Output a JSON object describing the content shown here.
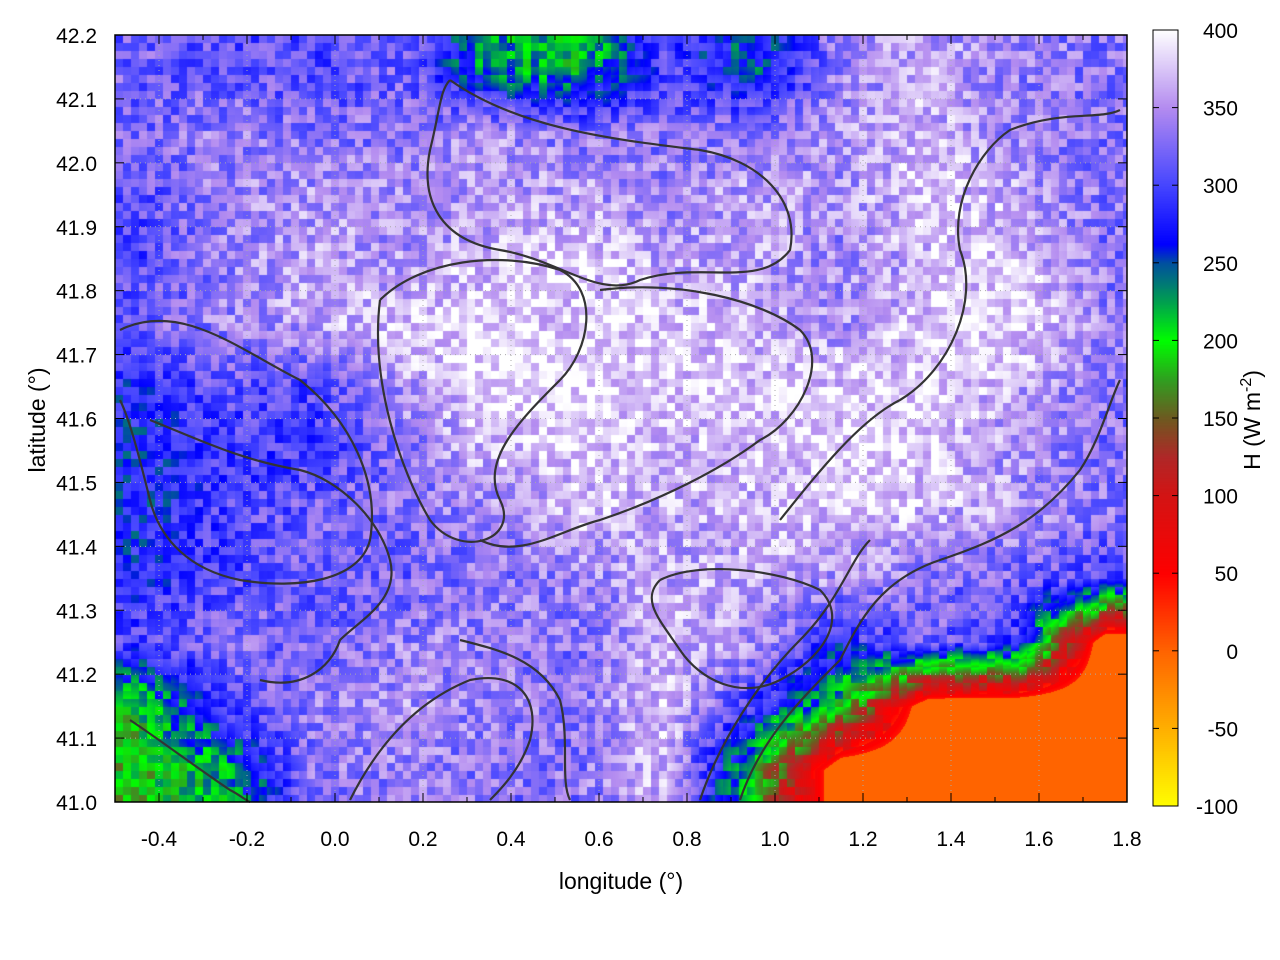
{
  "chart_data": {
    "type": "heatmap",
    "xlabel": "longitude (°)",
    "ylabel": "latitude (°)",
    "colorbar_label": "H (W m",
    "colorbar_label_sup": "-2",
    "colorbar_label_end": ")",
    "xlim": [
      -0.5,
      1.8
    ],
    "ylim": [
      41.0,
      42.2
    ],
    "clim": [
      -100,
      400
    ],
    "xticks": [
      "-0.4",
      "-0.2",
      "0.0",
      "0.2",
      "0.4",
      "0.6",
      "0.8",
      "1.0",
      "1.2",
      "1.4",
      "1.6",
      "1.8"
    ],
    "yticks": [
      "41.0",
      "41.1",
      "41.2",
      "41.3",
      "41.4",
      "41.5",
      "41.6",
      "41.7",
      "41.8",
      "41.9",
      "42.0",
      "42.1",
      "42.2"
    ],
    "cticks": [
      "-100",
      "-50",
      "0",
      "50",
      "100",
      "150",
      "200",
      "250",
      "300",
      "350",
      "400"
    ],
    "grid": true,
    "contours": true,
    "colormap": [
      {
        "v": -100,
        "c": "#ffff00"
      },
      {
        "v": -50,
        "c": "#ffb000"
      },
      {
        "v": 0,
        "c": "#ff6400"
      },
      {
        "v": 50,
        "c": "#ff0000"
      },
      {
        "v": 100,
        "c": "#d41414"
      },
      {
        "v": 125,
        "c": "#b02828"
      },
      {
        "v": 150,
        "c": "#6e5a20"
      },
      {
        "v": 175,
        "c": "#30a020"
      },
      {
        "v": 200,
        "c": "#00ff00"
      },
      {
        "v": 225,
        "c": "#00a050"
      },
      {
        "v": 250,
        "c": "#0050a0"
      },
      {
        "v": 262,
        "c": "#0000ff"
      },
      {
        "v": 300,
        "c": "#4646ff"
      },
      {
        "v": 350,
        "c": "#b48cf0"
      },
      {
        "v": 400,
        "c": "#ffffff"
      }
    ],
    "grid_lon": [
      -0.45,
      -0.25,
      -0.05,
      0.15,
      0.35,
      0.55,
      0.75,
      0.95,
      1.15,
      1.35,
      1.55,
      1.75
    ],
    "grid_lat": [
      42.15,
      42.05,
      41.95,
      41.85,
      41.75,
      41.65,
      41.55,
      41.45,
      41.35,
      41.25,
      41.15,
      41.05
    ],
    "values": [
      [
        320,
        310,
        300,
        320,
        230,
        210,
        300,
        250,
        340,
        360,
        340,
        330
      ],
      [
        320,
        340,
        330,
        330,
        350,
        330,
        330,
        330,
        350,
        370,
        340,
        330
      ],
      [
        310,
        340,
        350,
        350,
        350,
        360,
        340,
        360,
        350,
        380,
        360,
        330
      ],
      [
        300,
        340,
        360,
        350,
        370,
        380,
        360,
        360,
        340,
        370,
        380,
        330
      ],
      [
        320,
        340,
        360,
        380,
        390,
        380,
        380,
        360,
        350,
        380,
        390,
        340
      ],
      [
        280,
        310,
        300,
        350,
        390,
        390,
        380,
        380,
        380,
        390,
        360,
        330
      ],
      [
        270,
        290,
        300,
        330,
        370,
        380,
        370,
        370,
        390,
        380,
        350,
        330
      ],
      [
        270,
        300,
        320,
        330,
        340,
        370,
        360,
        370,
        380,
        370,
        350,
        330
      ],
      [
        280,
        300,
        320,
        320,
        330,
        340,
        360,
        360,
        350,
        330,
        320,
        300
      ],
      [
        300,
        330,
        320,
        340,
        340,
        330,
        370,
        350,
        280,
        320,
        290,
        0
      ],
      [
        200,
        300,
        340,
        350,
        340,
        330,
        380,
        290,
        200,
        0,
        0,
        0
      ],
      [
        190,
        220,
        330,
        340,
        330,
        330,
        370,
        200,
        0,
        0,
        0,
        0
      ]
    ]
  }
}
